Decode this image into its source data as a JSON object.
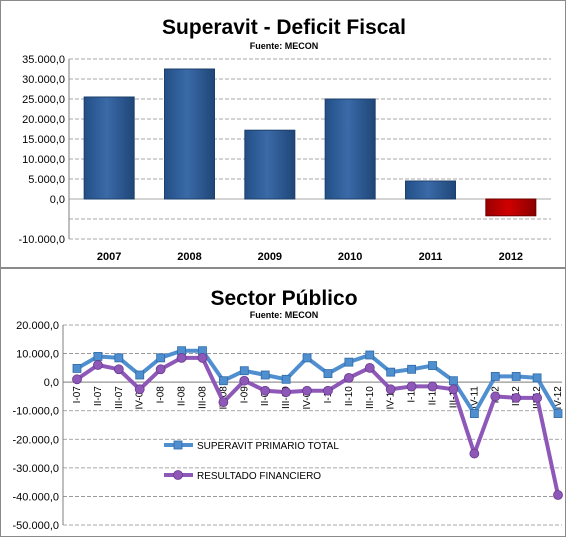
{
  "colors": {
    "bar_positive": "#3a6aa8",
    "bar_negative": "#d00000",
    "series1": "#4f8fd0",
    "series2": "#8e58b8",
    "grid": "#8c8c8c"
  },
  "chart_data": [
    {
      "type": "bar",
      "title": "Superavit - Deficit Fiscal",
      "subtitle": "Fuente: MECON",
      "categories": [
        "2007",
        "2008",
        "2009",
        "2010",
        "2011",
        "2012"
      ],
      "values": [
        25500,
        32500,
        17200,
        25000,
        4500,
        -4200
      ],
      "ylim": [
        -10000,
        35000
      ],
      "yticks": [
        35000,
        30000,
        25000,
        20000,
        15000,
        10000,
        5000,
        0,
        -10000
      ],
      "ytick_labels": [
        "35.000,0",
        "30.000,0",
        "25.000,0",
        "20.000,0",
        "15.000,0",
        "10.000,0",
        "5.000,0",
        "0,0",
        "-10.000,0"
      ],
      "grid": true
    },
    {
      "type": "line",
      "title": "Sector Público",
      "subtitle": "Fuente: MECON",
      "categories": [
        "I-07",
        "II-07",
        "III-07",
        "IV-07",
        "I-08",
        "II-08",
        "III-08",
        "IV-08",
        "I-09",
        "II-09",
        "III-09",
        "IV-09",
        "I-10",
        "II-10",
        "III-10",
        "IV-10",
        "I-11",
        "II-11",
        "III-11",
        "IV-11",
        "I-12",
        "II-12",
        "III-12",
        "IV-12"
      ],
      "category_labels": [
        "I-07",
        "II-07",
        "III-07",
        "IV-07",
        "I-08",
        "II-08",
        "III-08",
        "IV-08",
        "I-09",
        "II-09",
        "III-09",
        "IV-09",
        "I-10",
        "II-10",
        "III-10",
        "IV-10",
        "I-11",
        "II-11",
        "III-11",
        "IV-11",
        "I-12",
        "II-12",
        "III-12",
        "IV-12"
      ],
      "series": [
        {
          "name": "SUPERAVIT PRIMARIO TOTAL",
          "values": [
            4800,
            9000,
            8500,
            2500,
            8500,
            11000,
            11000,
            500,
            4000,
            2500,
            1000,
            8500,
            3000,
            7000,
            9500,
            3500,
            4500,
            5800,
            500,
            -11000,
            2000,
            2000,
            1500,
            -11000
          ]
        },
        {
          "name": "RESULTADO FINANCIERO",
          "values": [
            1000,
            6000,
            4500,
            -2500,
            4500,
            8500,
            8500,
            -7000,
            500,
            -3000,
            -3500,
            -3000,
            -3000,
            1500,
            5000,
            -2500,
            -1500,
            -1500,
            -2500,
            -25000,
            -5000,
            -5500,
            -5500,
            -39500
          ]
        }
      ],
      "ylim": [
        -50000,
        20000
      ],
      "yticks": [
        20000,
        10000,
        0,
        -10000,
        -20000,
        -30000,
        -40000,
        -50000
      ],
      "ytick_labels": [
        "20.000,0",
        "10.000,0",
        "0,0",
        "-10.000,0",
        "-20.000,0",
        "-30.000,0",
        "-40.000,0",
        "-50.000,0"
      ],
      "legend": "lower-left",
      "grid": true
    }
  ]
}
